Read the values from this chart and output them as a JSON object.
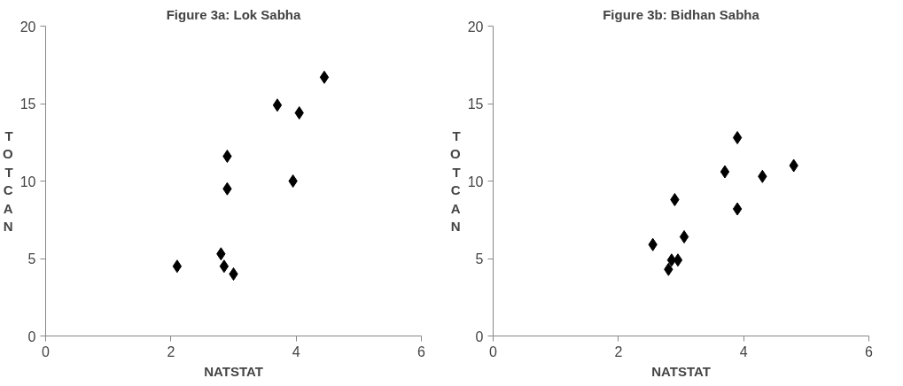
{
  "chart_data": [
    {
      "type": "scatter",
      "title": "Figure 3a: Lok Sabha",
      "xlabel": "NATSTAT",
      "ylabel": "TOTCAN",
      "marker": "diamond",
      "grid": false,
      "x": [
        2.1,
        2.8,
        2.85,
        3.0,
        2.9,
        2.9,
        3.7,
        4.05,
        3.95,
        4.45
      ],
      "series": [
        {
          "color": "#000000",
          "values": [
            4.5,
            5.3,
            4.5,
            4.0,
            9.5,
            11.6,
            14.9,
            14.4,
            10.0,
            16.7
          ]
        }
      ],
      "xlim": [
        0,
        6
      ],
      "ylim": [
        0,
        20
      ],
      "xticks": [
        0,
        2,
        4,
        6
      ],
      "yticks": [
        0,
        5,
        10,
        15,
        20
      ]
    },
    {
      "type": "scatter",
      "title": "Figure 3b: Bidhan Sabha",
      "xlabel": "NATSTAT",
      "ylabel": "TOTCAN",
      "marker": "diamond",
      "grid": false,
      "x": [
        2.55,
        2.8,
        2.85,
        2.95,
        2.9,
        3.05,
        3.7,
        3.9,
        3.9,
        4.3,
        4.8
      ],
      "series": [
        {
          "color": "#000000",
          "values": [
            5.9,
            4.3,
            4.9,
            4.9,
            8.8,
            6.4,
            10.6,
            12.8,
            8.2,
            10.3,
            11.0
          ]
        }
      ],
      "xlim": [
        0,
        6
      ],
      "ylim": [
        0,
        20
      ],
      "xticks": [
        0,
        2,
        4,
        6
      ],
      "yticks": [
        0,
        5,
        10,
        15,
        20
      ]
    }
  ]
}
